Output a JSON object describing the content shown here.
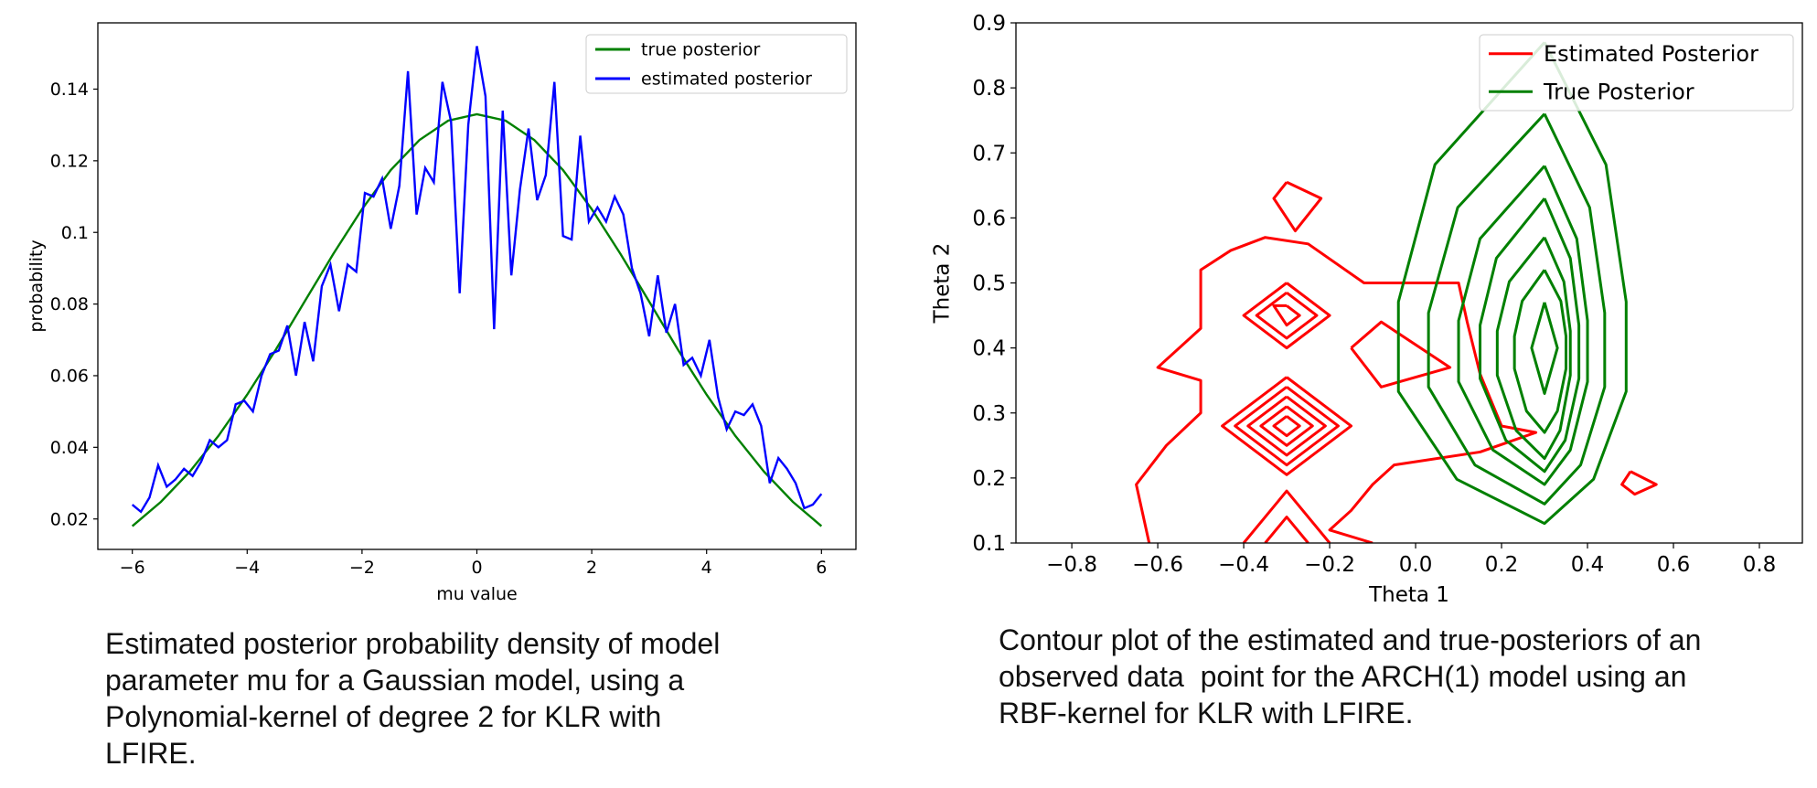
{
  "chart_data": [
    {
      "type": "line",
      "xlabel": "mu value",
      "ylabel": "probability",
      "xlim": [
        -6.6,
        6.6
      ],
      "ylim": [
        0.0115,
        0.1585
      ],
      "xticks": [
        {
          "value": -6,
          "label": "−6"
        },
        {
          "value": -4,
          "label": "−4"
        },
        {
          "value": -2,
          "label": "−2"
        },
        0,
        2,
        4,
        6
      ],
      "yticks": [
        0.02,
        0.04,
        0.06,
        0.08,
        0.1,
        0.12,
        0.14
      ],
      "legend": "upper right",
      "series": [
        {
          "name": "true posterior",
          "color": "#008000",
          "x": [
            -6,
            -5.5,
            -5,
            -4.5,
            -4,
            -3.5,
            -3,
            -2.5,
            -2,
            -1.5,
            -1,
            -0.5,
            0,
            0.5,
            1,
            1.5,
            2,
            2.5,
            3,
            3.5,
            4,
            4.5,
            5,
            5.5,
            6
          ],
          "values": [
            0.018,
            0.0248,
            0.0332,
            0.0432,
            0.0547,
            0.0673,
            0.0807,
            0.094,
            0.1065,
            0.1174,
            0.1258,
            0.1312,
            0.133,
            0.1312,
            0.1258,
            0.1174,
            0.1065,
            0.094,
            0.0807,
            0.0673,
            0.0547,
            0.0432,
            0.0332,
            0.0248,
            0.018
          ]
        },
        {
          "name": "estimated posterior",
          "color": "#0000ff",
          "x": [
            -6,
            -5.85,
            -5.7,
            -5.55,
            -5.4,
            -5.25,
            -5.1,
            -4.95,
            -4.8,
            -4.65,
            -4.5,
            -4.35,
            -4.2,
            -4.05,
            -3.9,
            -3.75,
            -3.6,
            -3.45,
            -3.3,
            -3.15,
            -3,
            -2.85,
            -2.7,
            -2.55,
            -2.4,
            -2.25,
            -2.1,
            -1.95,
            -1.8,
            -1.65,
            -1.5,
            -1.35,
            -1.2,
            -1.05,
            -0.9,
            -0.75,
            -0.6,
            -0.45,
            -0.3,
            -0.15,
            0,
            0.15,
            0.3,
            0.45,
            0.6,
            0.75,
            0.9,
            1.05,
            1.2,
            1.35,
            1.5,
            1.65,
            1.8,
            1.95,
            2.1,
            2.25,
            2.4,
            2.55,
            2.7,
            2.85,
            3,
            3.15,
            3.3,
            3.45,
            3.6,
            3.75,
            3.9,
            4.05,
            4.2,
            4.35,
            4.5,
            4.65,
            4.8,
            4.95,
            5.1,
            5.25,
            5.4,
            5.55,
            5.7,
            5.85,
            6
          ],
          "values": [
            0.024,
            0.022,
            0.026,
            0.035,
            0.029,
            0.031,
            0.034,
            0.032,
            0.036,
            0.042,
            0.04,
            0.042,
            0.052,
            0.053,
            0.05,
            0.06,
            0.066,
            0.067,
            0.074,
            0.06,
            0.075,
            0.064,
            0.085,
            0.091,
            0.078,
            0.091,
            0.089,
            0.111,
            0.11,
            0.115,
            0.101,
            0.113,
            0.145,
            0.105,
            0.118,
            0.114,
            0.142,
            0.131,
            0.083,
            0.13,
            0.152,
            0.138,
            0.073,
            0.134,
            0.088,
            0.112,
            0.129,
            0.109,
            0.116,
            0.142,
            0.099,
            0.098,
            0.127,
            0.103,
            0.107,
            0.103,
            0.11,
            0.105,
            0.09,
            0.083,
            0.071,
            0.088,
            0.072,
            0.08,
            0.063,
            0.065,
            0.06,
            0.07,
            0.054,
            0.045,
            0.05,
            0.049,
            0.052,
            0.046,
            0.03,
            0.037,
            0.034,
            0.03,
            0.023,
            0.024,
            0.027
          ]
        }
      ],
      "caption": [
        "Estimated posterior probability density of model",
        "parameter mu for a Gaussian model, using a",
        "Polynomial-kernel of degree 2 for KLR with",
        "LFIRE."
      ]
    },
    {
      "type": "contour",
      "xlabel": "Theta 1",
      "ylabel": "Theta 2",
      "xlim": [
        -0.93,
        0.9
      ],
      "ylim": [
        0.1,
        0.9
      ],
      "xticks": [
        {
          "value": -0.8,
          "label": "−0.8"
        },
        {
          "value": -0.6,
          "label": "−0.6"
        },
        {
          "value": -0.4,
          "label": "−0.4"
        },
        {
          "value": -0.2,
          "label": "−0.2"
        },
        {
          "value": 0,
          "label": "0.0"
        },
        0.2,
        0.4,
        0.6,
        0.8
      ],
      "yticks": [
        0.1,
        0.2,
        0.3,
        0.4,
        0.5,
        0.6,
        0.7,
        0.8,
        0.9
      ],
      "legend": "upper right",
      "series": [
        {
          "name": "Estimated Posterior",
          "color": "#ff0000",
          "contours": [
            {
              "x": [
                -0.62,
                -0.65,
                -0.58,
                -0.5,
                -0.5,
                -0.6,
                -0.5,
                -0.5,
                -0.43,
                -0.35,
                -0.25,
                -0.12,
                0.1,
                0.12,
                0.15,
                0.2,
                0.28,
                0.15,
                -0.05,
                -0.1,
                -0.15,
                -0.2,
                -0.1
              ],
              "y": [
                0.1,
                0.19,
                0.25,
                0.3,
                0.35,
                0.37,
                0.43,
                0.52,
                0.55,
                0.57,
                0.56,
                0.5,
                0.5,
                0.44,
                0.36,
                0.28,
                0.27,
                0.24,
                0.22,
                0.19,
                0.15,
                0.12,
                0.1
              ]
            },
            {
              "x": [
                -0.3,
                -0.2,
                -0.3,
                -0.4,
                -0.3
              ],
              "y": [
                0.5,
                0.45,
                0.4,
                0.45,
                0.5
              ]
            },
            {
              "x": [
                -0.3,
                -0.23,
                -0.3,
                -0.37,
                -0.3
              ],
              "y": [
                0.485,
                0.45,
                0.415,
                0.45,
                0.485
              ]
            },
            {
              "x": [
                -0.3,
                -0.27,
                -0.3,
                -0.33,
                -0.3
              ],
              "y": [
                0.465,
                0.45,
                0.435,
                0.465,
                0.465
              ]
            },
            {
              "x": [
                -0.3,
                -0.15,
                -0.3,
                -0.45,
                -0.3
              ],
              "y": [
                0.355,
                0.28,
                0.205,
                0.28,
                0.355
              ]
            },
            {
              "x": [
                -0.3,
                -0.18,
                -0.3,
                -0.42,
                -0.3
              ],
              "y": [
                0.34,
                0.28,
                0.22,
                0.28,
                0.34
              ]
            },
            {
              "x": [
                -0.3,
                -0.21,
                -0.3,
                -0.39,
                -0.3
              ],
              "y": [
                0.325,
                0.28,
                0.235,
                0.28,
                0.325
              ]
            },
            {
              "x": [
                -0.3,
                -0.24,
                -0.3,
                -0.36,
                -0.3
              ],
              "y": [
                0.31,
                0.28,
                0.25,
                0.28,
                0.31
              ]
            },
            {
              "x": [
                -0.3,
                -0.27,
                -0.3,
                -0.33,
                -0.3
              ],
              "y": [
                0.295,
                0.28,
                0.265,
                0.28,
                0.295
              ]
            },
            {
              "x": [
                -0.4,
                -0.3,
                -0.2
              ],
              "y": [
                0.1,
                0.18,
                0.1
              ]
            },
            {
              "x": [
                -0.35,
                -0.3,
                -0.25
              ],
              "y": [
                0.1,
                0.14,
                0.1
              ]
            },
            {
              "x": [
                -0.3,
                -0.22,
                -0.28,
                -0.33,
                -0.3
              ],
              "y": [
                0.655,
                0.63,
                0.58,
                0.63,
                0.655
              ]
            },
            {
              "x": [
                -0.15,
                -0.08,
                0.08,
                -0.08,
                -0.15
              ],
              "y": [
                0.4,
                0.44,
                0.37,
                0.34,
                0.4
              ]
            },
            {
              "x": [
                0.5,
                0.56,
                0.51,
                0.48,
                0.5
              ],
              "y": [
                0.21,
                0.19,
                0.175,
                0.19,
                0.21
              ]
            }
          ]
        },
        {
          "name": "True Posterior",
          "color": "#008000",
          "contours": [
            {
              "x": [
                0.3,
                0.443,
                0.49,
                0.49,
                0.414,
                0.3,
                0.096,
                -0.04,
                -0.04,
                0.045,
                0.3
              ],
              "y": [
                0.87,
                0.682,
                0.471,
                0.333,
                0.198,
                0.13,
                0.198,
                0.333,
                0.471,
                0.682,
                0.87
              ]
            },
            {
              "x": [
                0.3,
                0.405,
                0.44,
                0.44,
                0.384,
                0.3,
                0.138,
                0.03,
                0.03,
                0.098,
                0.3
              ],
              "y": [
                0.76,
                0.616,
                0.454,
                0.34,
                0.22,
                0.16,
                0.22,
                0.34,
                0.454,
                0.616,
                0.76
              ]
            },
            {
              "x": [
                0.3,
                0.375,
                0.4,
                0.4,
                0.36,
                0.3,
                0.18,
                0.1,
                0.1,
                0.15,
                0.3
              ],
              "y": [
                0.68,
                0.568,
                0.442,
                0.348,
                0.243,
                0.19,
                0.243,
                0.348,
                0.442,
                0.568,
                0.68
              ]
            },
            {
              "x": [
                0.3,
                0.36,
                0.38,
                0.38,
                0.348,
                0.3,
                0.21,
                0.15,
                0.15,
                0.188,
                0.3
              ],
              "y": [
                0.63,
                0.538,
                0.435,
                0.353,
                0.258,
                0.21,
                0.258,
                0.353,
                0.435,
                0.538,
                0.63
              ]
            },
            {
              "x": [
                0.3,
                0.345,
                0.36,
                0.36,
                0.336,
                0.3,
                0.234,
                0.19,
                0.19,
                0.218,
                0.3
              ],
              "y": [
                0.57,
                0.502,
                0.426,
                0.358,
                0.273,
                0.23,
                0.273,
                0.358,
                0.426,
                0.502,
                0.57
              ]
            },
            {
              "x": [
                0.3,
                0.338,
                0.35,
                0.35,
                0.33,
                0.3,
                0.258,
                0.23,
                0.23,
                0.248,
                0.3
              ],
              "y": [
                0.52,
                0.472,
                0.418,
                0.368,
                0.303,
                0.27,
                0.303,
                0.368,
                0.418,
                0.472,
                0.52
              ]
            },
            {
              "x": [
                0.3,
                0.33,
                0.3,
                0.27,
                0.3
              ],
              "y": [
                0.47,
                0.4,
                0.33,
                0.4,
                0.47
              ]
            }
          ]
        }
      ],
      "caption": [
        "Contour plot of the estimated and true-posteriors of an",
        "observed data  point for the ARCH(1) model using an",
        "RBF-kernel for KLR with LFIRE."
      ]
    }
  ]
}
